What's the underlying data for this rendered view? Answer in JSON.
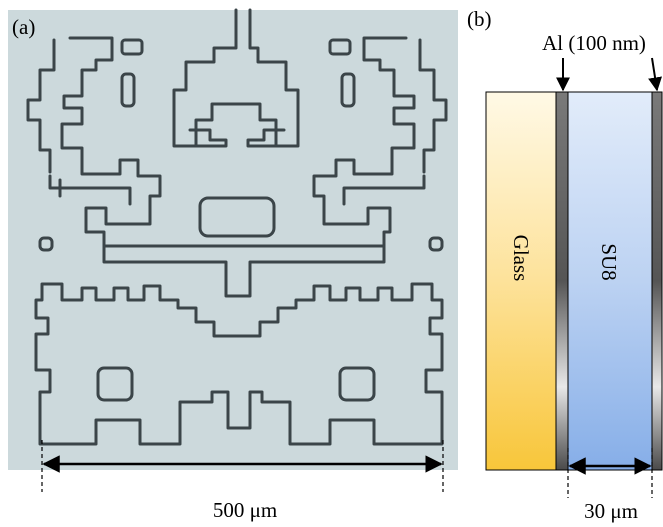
{
  "panel_a": {
    "label": "(a)",
    "scale_bar": "500 μm"
  },
  "panel_b": {
    "label": "(b)",
    "al_label": "Al (100 nm)",
    "glass_label": "Glass",
    "su8_label": "SU8",
    "scale_bar": "30 μm"
  }
}
